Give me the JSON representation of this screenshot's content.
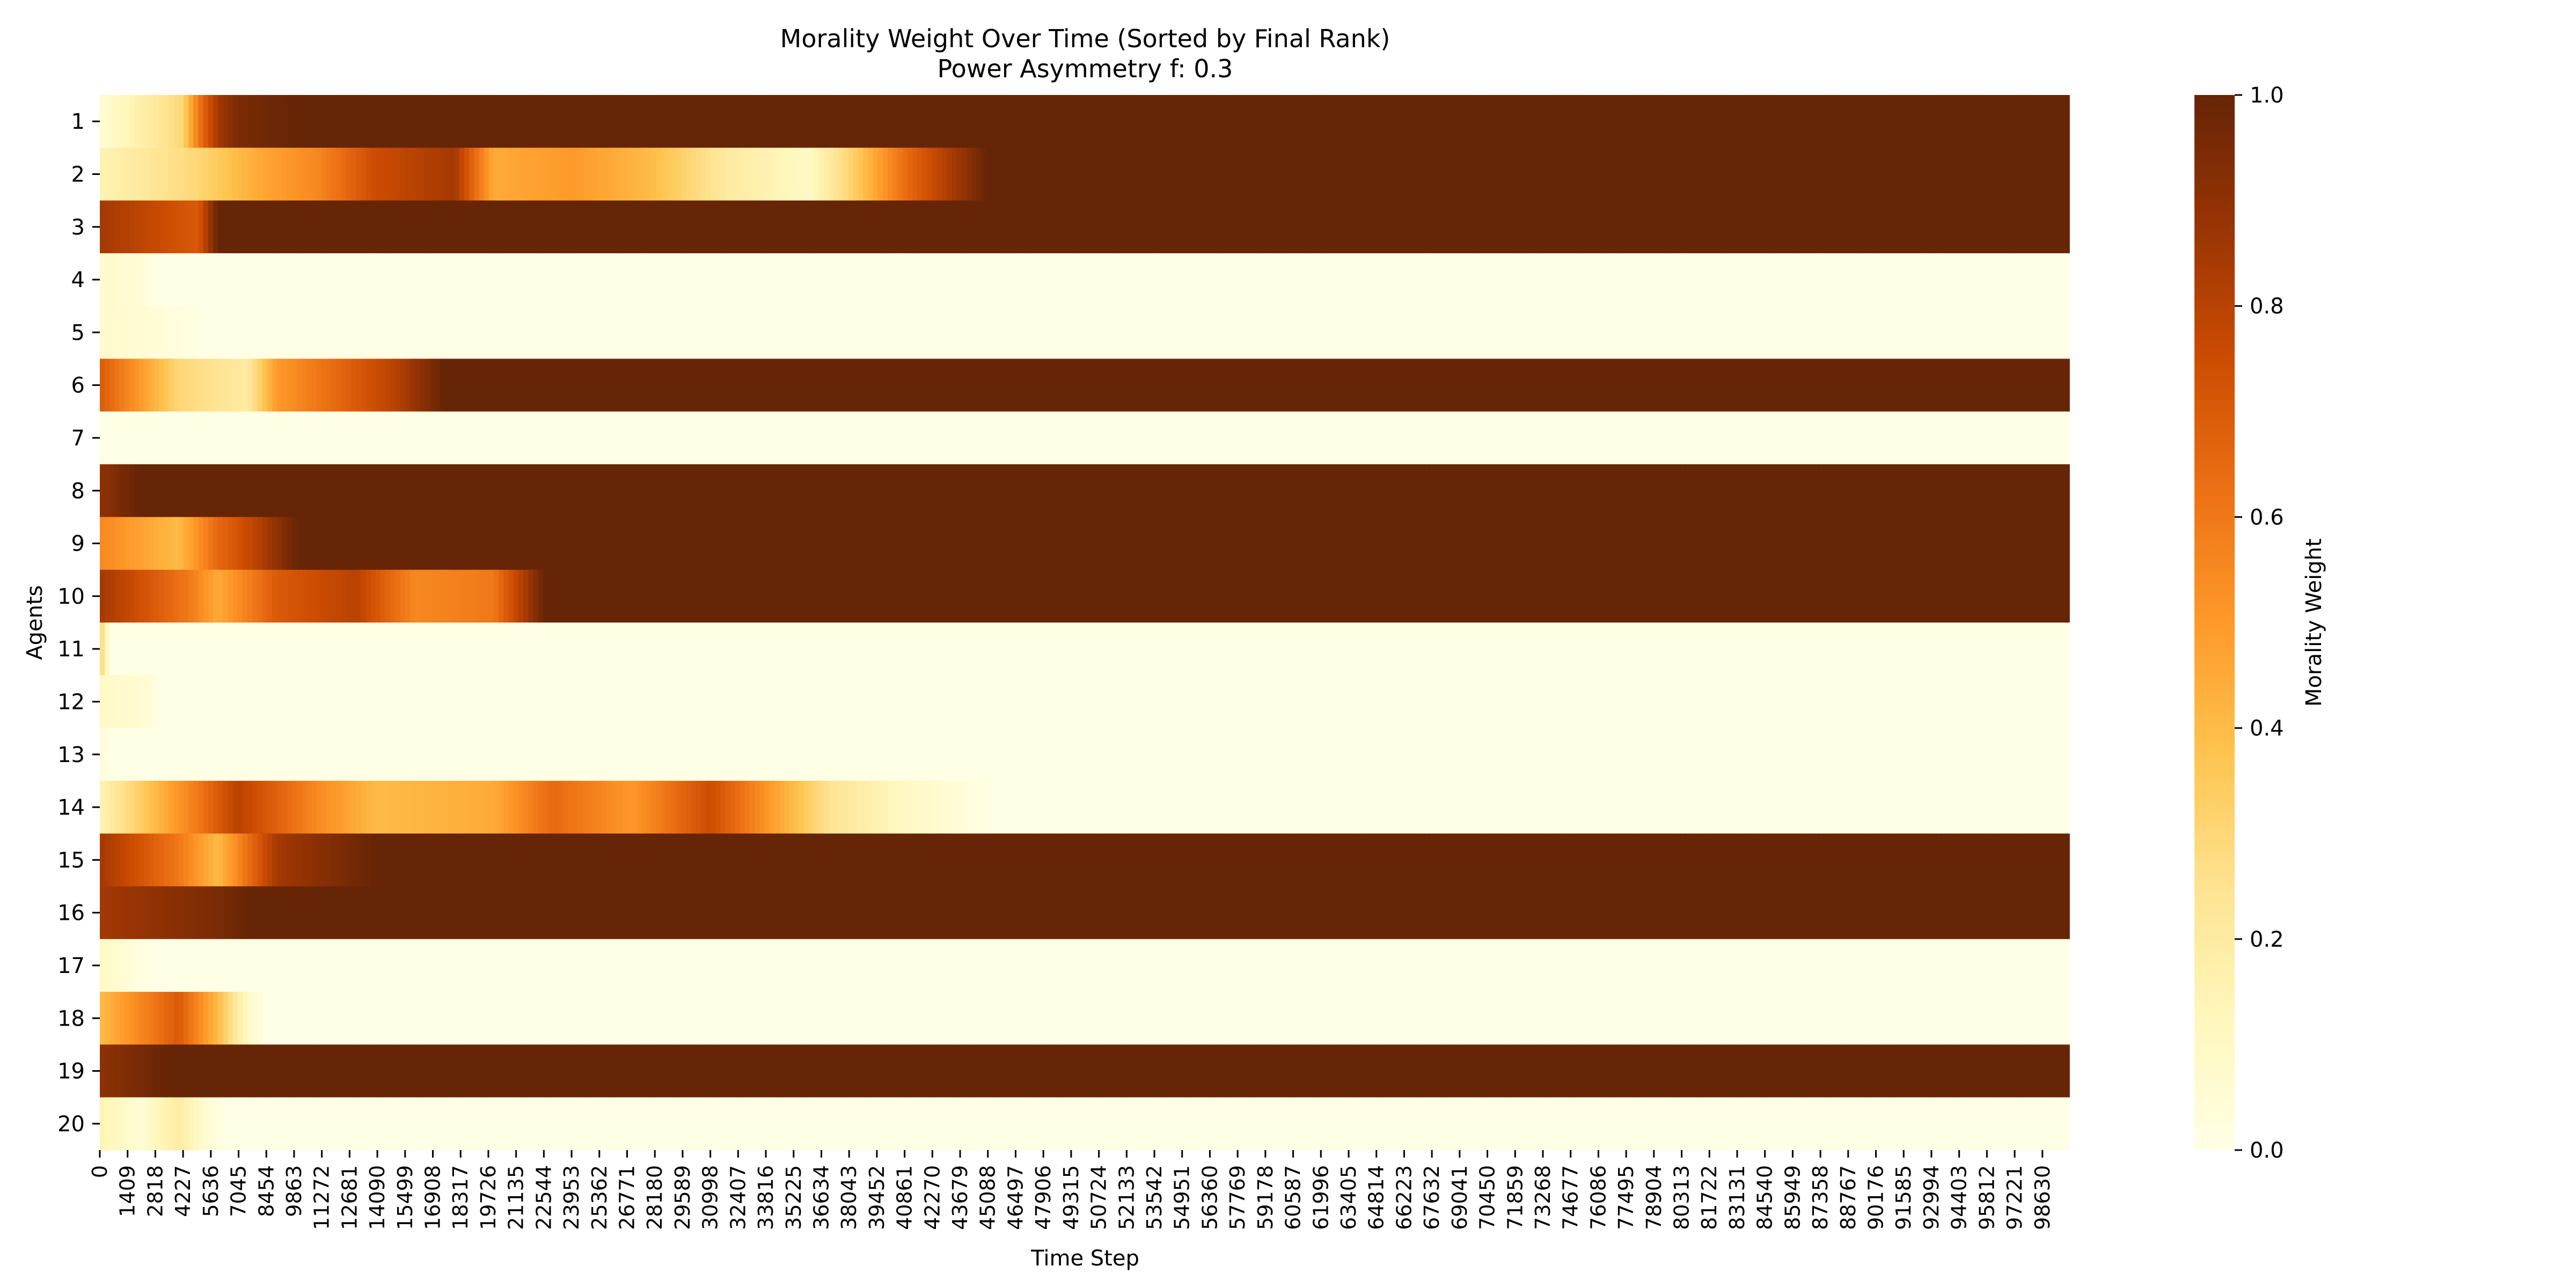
{
  "chart_data": {
    "type": "heatmap",
    "title": "Morality Weight Over Time (Sorted by Final Rank)",
    "subtitle": "Power Asymmetry f: 0.3",
    "xlabel": "Time Step",
    "ylabel": "Agents",
    "colorbar": {
      "label": "Morality Weight",
      "colormap": "YlOrBr",
      "range": [
        0,
        1
      ],
      "ticks": [
        "0.0",
        "0.2",
        "0.4",
        "0.6",
        "0.8",
        "1.0"
      ]
    },
    "xlim": [
      0,
      99999
    ],
    "x_ticks": [
      "0",
      "1409",
      "2818",
      "4227",
      "5636",
      "7045",
      "8454",
      "9863",
      "11272",
      "12681",
      "14090",
      "15499",
      "16908",
      "18317",
      "19726",
      "21135",
      "22544",
      "23953",
      "25362",
      "26771",
      "28180",
      "29589",
      "30998",
      "32407",
      "33816",
      "35225",
      "36634",
      "38043",
      "39452",
      "40861",
      "42270",
      "43679",
      "45088",
      "46497",
      "47906",
      "49315",
      "50724",
      "52133",
      "53542",
      "54951",
      "56360",
      "57769",
      "59178",
      "60587",
      "61996",
      "63405",
      "64814",
      "66223",
      "67632",
      "69041",
      "70450",
      "71859",
      "73268",
      "74677",
      "76086",
      "77495",
      "78904",
      "80313",
      "81722",
      "83131",
      "84540",
      "85949",
      "87358",
      "88767",
      "90176",
      "91585",
      "92994",
      "94403",
      "95812",
      "97221",
      "98630"
    ],
    "agents": [
      "1",
      "2",
      "3",
      "4",
      "5",
      "6",
      "7",
      "8",
      "9",
      "10",
      "11",
      "12",
      "13",
      "14",
      "15",
      "16",
      "17",
      "18",
      "19",
      "20"
    ],
    "rows": [
      {
        "agent": "1",
        "segments": [
          {
            "t": 0,
            "w": 0.05
          },
          {
            "t": 4200,
            "w": 0.3
          },
          {
            "t": 5000,
            "w": 0.6
          },
          {
            "t": 6000,
            "w": 0.85
          },
          {
            "t": 7000,
            "w": 0.95
          },
          {
            "t": 10000,
            "w": 1.0
          },
          {
            "t": 99999,
            "w": 1.0
          }
        ]
      },
      {
        "agent": "2",
        "segments": [
          {
            "t": 0,
            "w": 0.15
          },
          {
            "t": 5000,
            "w": 0.3
          },
          {
            "t": 8000,
            "w": 0.45
          },
          {
            "t": 11000,
            "w": 0.55
          },
          {
            "t": 14000,
            "w": 0.75
          },
          {
            "t": 18000,
            "w": 0.85
          },
          {
            "t": 20000,
            "w": 0.45
          },
          {
            "t": 24000,
            "w": 0.5
          },
          {
            "t": 28000,
            "w": 0.4
          },
          {
            "t": 32000,
            "w": 0.2
          },
          {
            "t": 36000,
            "w": 0.1
          },
          {
            "t": 38000,
            "w": 0.3
          },
          {
            "t": 41000,
            "w": 0.65
          },
          {
            "t": 44000,
            "w": 0.9
          },
          {
            "t": 45000,
            "w": 1.0
          },
          {
            "t": 99999,
            "w": 1.0
          }
        ]
      },
      {
        "agent": "3",
        "segments": [
          {
            "t": 0,
            "w": 0.85
          },
          {
            "t": 5000,
            "w": 0.7
          },
          {
            "t": 6000,
            "w": 1.0
          },
          {
            "t": 99999,
            "w": 1.0
          }
        ]
      },
      {
        "agent": "4",
        "segments": [
          {
            "t": 0,
            "w": 0.08
          },
          {
            "t": 2000,
            "w": 0.05
          },
          {
            "t": 3000,
            "w": 0.0
          },
          {
            "t": 99999,
            "w": 0.0
          }
        ]
      },
      {
        "agent": "5",
        "segments": [
          {
            "t": 0,
            "w": 0.08
          },
          {
            "t": 4500,
            "w": 0.02
          },
          {
            "t": 5000,
            "w": 0.0
          },
          {
            "t": 99999,
            "w": 0.0
          }
        ]
      },
      {
        "agent": "6",
        "segments": [
          {
            "t": 0,
            "w": 0.7
          },
          {
            "t": 4000,
            "w": 0.3
          },
          {
            "t": 7500,
            "w": 0.2
          },
          {
            "t": 9000,
            "w": 0.5
          },
          {
            "t": 12000,
            "w": 0.65
          },
          {
            "t": 15000,
            "w": 0.8
          },
          {
            "t": 17500,
            "w": 1.0
          },
          {
            "t": 99999,
            "w": 1.0
          }
        ]
      },
      {
        "agent": "7",
        "segments": [
          {
            "t": 0,
            "w": 0.0
          },
          {
            "t": 99999,
            "w": 0.0
          }
        ]
      },
      {
        "agent": "8",
        "segments": [
          {
            "t": 0,
            "w": 0.9
          },
          {
            "t": 2000,
            "w": 1.0
          },
          {
            "t": 99999,
            "w": 1.0
          }
        ]
      },
      {
        "agent": "9",
        "segments": [
          {
            "t": 0,
            "w": 0.55
          },
          {
            "t": 4000,
            "w": 0.4
          },
          {
            "t": 6000,
            "w": 0.65
          },
          {
            "t": 8000,
            "w": 0.8
          },
          {
            "t": 10000,
            "w": 1.0
          },
          {
            "t": 99999,
            "w": 1.0
          }
        ]
      },
      {
        "agent": "10",
        "segments": [
          {
            "t": 0,
            "w": 0.85
          },
          {
            "t": 4500,
            "w": 0.6
          },
          {
            "t": 6000,
            "w": 0.45
          },
          {
            "t": 9000,
            "w": 0.7
          },
          {
            "t": 13000,
            "w": 0.8
          },
          {
            "t": 16000,
            "w": 0.55
          },
          {
            "t": 20000,
            "w": 0.6
          },
          {
            "t": 22000,
            "w": 0.9
          },
          {
            "t": 22600,
            "w": 1.0
          },
          {
            "t": 99999,
            "w": 1.0
          }
        ]
      },
      {
        "agent": "11",
        "segments": [
          {
            "t": 0,
            "w": 0.35
          },
          {
            "t": 500,
            "w": 0.0
          },
          {
            "t": 99999,
            "w": 0.0
          }
        ]
      },
      {
        "agent": "12",
        "segments": [
          {
            "t": 0,
            "w": 0.1
          },
          {
            "t": 2500,
            "w": 0.05
          },
          {
            "t": 3000,
            "w": 0.0
          },
          {
            "t": 99999,
            "w": 0.0
          }
        ]
      },
      {
        "agent": "13",
        "segments": [
          {
            "t": 0,
            "w": 0.05
          },
          {
            "t": 500,
            "w": 0.0
          },
          {
            "t": 99999,
            "w": 0.0
          }
        ]
      },
      {
        "agent": "14",
        "segments": [
          {
            "t": 0,
            "w": 0.15
          },
          {
            "t": 5000,
            "w": 0.6
          },
          {
            "t": 7000,
            "w": 0.8
          },
          {
            "t": 11000,
            "w": 0.55
          },
          {
            "t": 14000,
            "w": 0.4
          },
          {
            "t": 20000,
            "w": 0.45
          },
          {
            "t": 23000,
            "w": 0.65
          },
          {
            "t": 27000,
            "w": 0.5
          },
          {
            "t": 31000,
            "w": 0.75
          },
          {
            "t": 34000,
            "w": 0.5
          },
          {
            "t": 37000,
            "w": 0.25
          },
          {
            "t": 41000,
            "w": 0.1
          },
          {
            "t": 45500,
            "w": 0.0
          },
          {
            "t": 99999,
            "w": 0.0
          }
        ]
      },
      {
        "agent": "15",
        "segments": [
          {
            "t": 0,
            "w": 0.85
          },
          {
            "t": 4000,
            "w": 0.6
          },
          {
            "t": 6000,
            "w": 0.4
          },
          {
            "t": 9000,
            "w": 0.85
          },
          {
            "t": 14000,
            "w": 1.0
          },
          {
            "t": 99999,
            "w": 1.0
          }
        ]
      },
      {
        "agent": "16",
        "segments": [
          {
            "t": 0,
            "w": 0.85
          },
          {
            "t": 6000,
            "w": 0.95
          },
          {
            "t": 7500,
            "w": 1.0
          },
          {
            "t": 99999,
            "w": 1.0
          }
        ]
      },
      {
        "agent": "17",
        "segments": [
          {
            "t": 0,
            "w": 0.1
          },
          {
            "t": 2000,
            "w": 0.02
          },
          {
            "t": 3000,
            "w": 0.0
          },
          {
            "t": 99999,
            "w": 0.0
          }
        ]
      },
      {
        "agent": "18",
        "segments": [
          {
            "t": 0,
            "w": 0.4
          },
          {
            "t": 2000,
            "w": 0.55
          },
          {
            "t": 4000,
            "w": 0.7
          },
          {
            "t": 6000,
            "w": 0.4
          },
          {
            "t": 7500,
            "w": 0.1
          },
          {
            "t": 8500,
            "w": 0.0
          },
          {
            "t": 99999,
            "w": 0.0
          }
        ]
      },
      {
        "agent": "19",
        "segments": [
          {
            "t": 0,
            "w": 0.9
          },
          {
            "t": 3500,
            "w": 1.0
          },
          {
            "t": 99999,
            "w": 1.0
          }
        ]
      },
      {
        "agent": "20",
        "segments": [
          {
            "t": 0,
            "w": 0.15
          },
          {
            "t": 2000,
            "w": 0.05
          },
          {
            "t": 4000,
            "w": 0.2
          },
          {
            "t": 5500,
            "w": 0.05
          },
          {
            "t": 6500,
            "w": 0.0
          },
          {
            "t": 99999,
            "w": 0.0
          }
        ]
      }
    ]
  }
}
